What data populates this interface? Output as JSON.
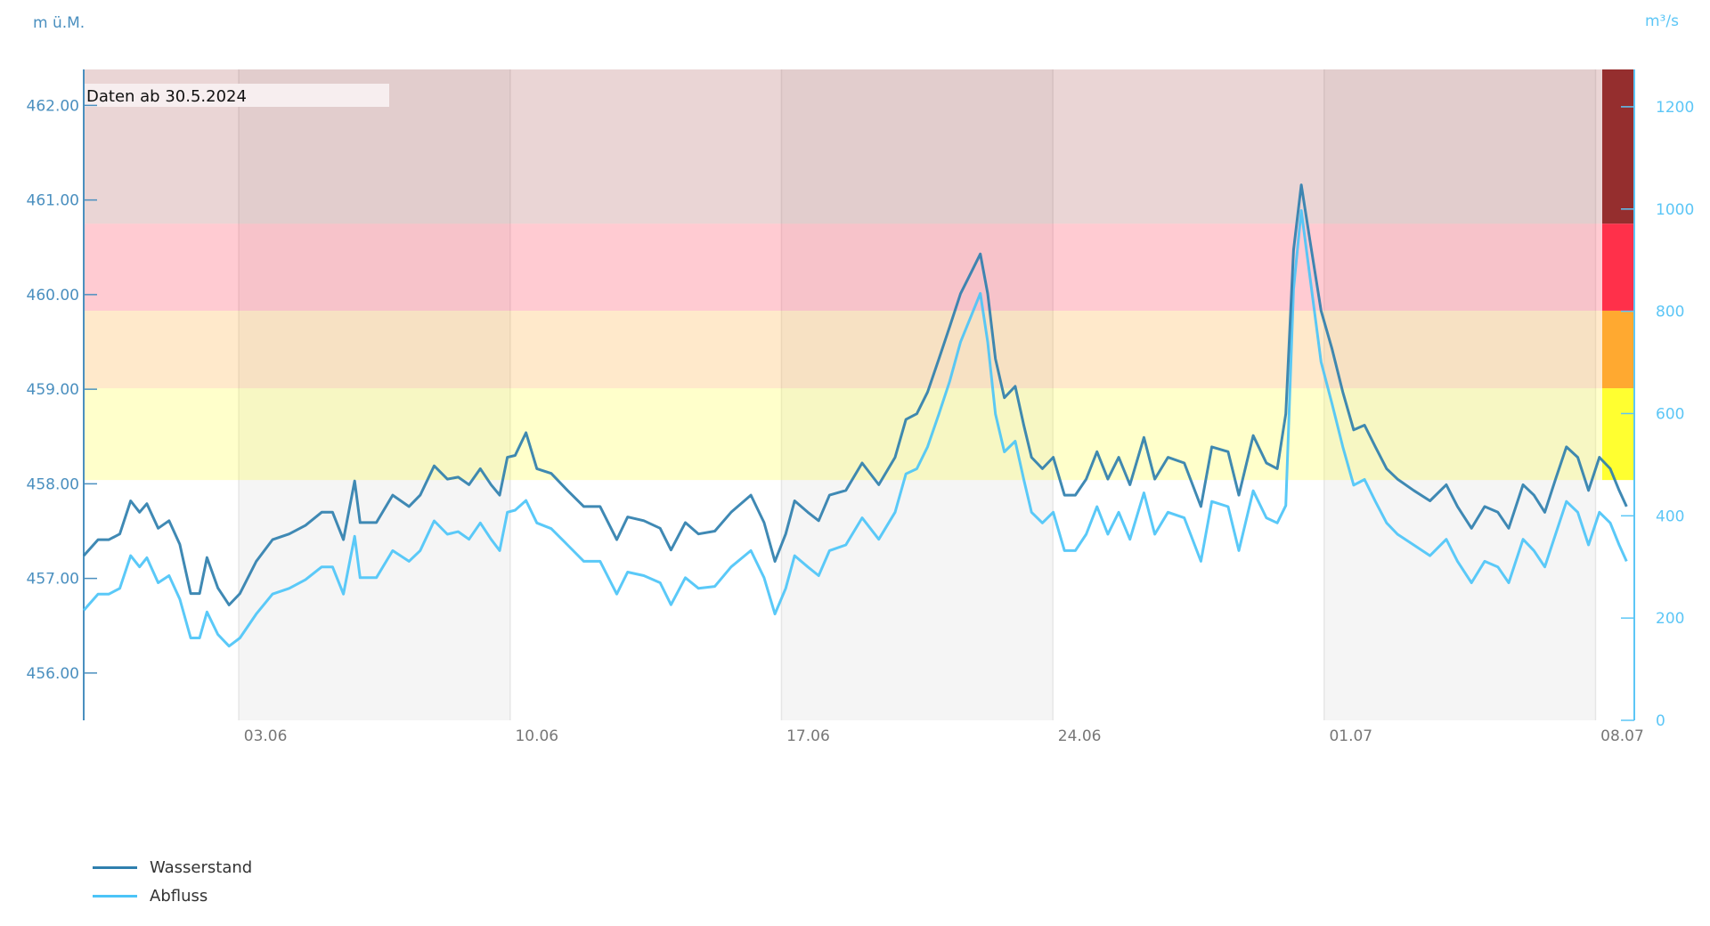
{
  "chart_data": {
    "type": "line",
    "title": "",
    "annotation": "Daten ab 30.5.2024",
    "x_unit": "days since 30.05.2024",
    "xlim": [
      0,
      40
    ],
    "x_ticks": [
      {
        "day": 4,
        "label": "03.06"
      },
      {
        "day": 11,
        "label": "10.06"
      },
      {
        "day": 18,
        "label": "17.06"
      },
      {
        "day": 25,
        "label": "24.06"
      },
      {
        "day": 32,
        "label": "01.07"
      },
      {
        "day": 39,
        "label": "08.07"
      }
    ],
    "y_left": {
      "label": "m ü.M.",
      "range": [
        455.5,
        462.38
      ],
      "ticks": [
        "456.00",
        "457.00",
        "458.00",
        "459.00",
        "460.00",
        "461.00",
        "462.00"
      ],
      "color": "#4a8fbf"
    },
    "y_right": {
      "label": "m³/s",
      "range": [
        0,
        1273
      ],
      "ticks": [
        "0",
        "200",
        "400",
        "600",
        "800",
        "1000",
        "1200"
      ],
      "color": "#5cc6f6"
    },
    "warning_bands_m": [
      {
        "from": 458.04,
        "to": 459.01,
        "color": "#ffff30"
      },
      {
        "from": 459.01,
        "to": 459.83,
        "color": "#ffa930"
      },
      {
        "from": 459.83,
        "to": 460.75,
        "color": "#ff304a"
      },
      {
        "from": 460.75,
        "to": 462.38,
        "color": "#952e2e"
      }
    ],
    "legend": {
      "placement": "bottom-left"
    },
    "series": [
      {
        "name": "Wasserstand",
        "axis": "left",
        "color": "#2f7fae",
        "points": [
          [
            0,
            457.24
          ],
          [
            0.37,
            457.41
          ],
          [
            0.65,
            457.41
          ],
          [
            0.93,
            457.47
          ],
          [
            1.21,
            457.82
          ],
          [
            1.44,
            457.7
          ],
          [
            1.63,
            457.79
          ],
          [
            1.92,
            457.53
          ],
          [
            2.2,
            457.61
          ],
          [
            2.48,
            457.36
          ],
          [
            2.76,
            456.84
          ],
          [
            2.99,
            456.84
          ],
          [
            3.18,
            457.22
          ],
          [
            3.46,
            456.9
          ],
          [
            3.75,
            456.72
          ],
          [
            4.03,
            456.84
          ],
          [
            4.45,
            457.18
          ],
          [
            4.87,
            457.41
          ],
          [
            5.3,
            457.47
          ],
          [
            5.72,
            457.56
          ],
          [
            6.14,
            457.7
          ],
          [
            6.42,
            457.7
          ],
          [
            6.7,
            457.41
          ],
          [
            6.99,
            458.03
          ],
          [
            7.13,
            457.59
          ],
          [
            7.55,
            457.59
          ],
          [
            7.97,
            457.88
          ],
          [
            8.39,
            457.76
          ],
          [
            8.68,
            457.88
          ],
          [
            9.04,
            458.19
          ],
          [
            9.38,
            458.05
          ],
          [
            9.66,
            458.07
          ],
          [
            9.94,
            457.99
          ],
          [
            10.23,
            458.16
          ],
          [
            10.51,
            457.99
          ],
          [
            10.73,
            457.88
          ],
          [
            10.93,
            458.28
          ],
          [
            11.13,
            458.3
          ],
          [
            11.41,
            458.54
          ],
          [
            11.69,
            458.16
          ],
          [
            12.06,
            458.11
          ],
          [
            12.48,
            457.93
          ],
          [
            12.9,
            457.76
          ],
          [
            13.32,
            457.76
          ],
          [
            13.75,
            457.41
          ],
          [
            14.03,
            457.65
          ],
          [
            14.45,
            457.61
          ],
          [
            14.87,
            457.53
          ],
          [
            15.15,
            457.3
          ],
          [
            15.52,
            457.59
          ],
          [
            15.86,
            457.47
          ],
          [
            16.28,
            457.5
          ],
          [
            16.7,
            457.7
          ],
          [
            17.21,
            457.88
          ],
          [
            17.55,
            457.59
          ],
          [
            17.83,
            457.18
          ],
          [
            18.11,
            457.47
          ],
          [
            18.34,
            457.82
          ],
          [
            18.68,
            457.7
          ],
          [
            18.96,
            457.61
          ],
          [
            19.24,
            457.88
          ],
          [
            19.66,
            457.93
          ],
          [
            20.08,
            458.22
          ],
          [
            20.51,
            457.99
          ],
          [
            20.93,
            458.28
          ],
          [
            21.21,
            458.68
          ],
          [
            21.49,
            458.74
          ],
          [
            21.77,
            458.97
          ],
          [
            22.06,
            459.32
          ],
          [
            22.34,
            459.66
          ],
          [
            22.62,
            460.01
          ],
          [
            22.9,
            460.24
          ],
          [
            23.13,
            460.43
          ],
          [
            23.32,
            460.01
          ],
          [
            23.52,
            459.32
          ],
          [
            23.75,
            458.91
          ],
          [
            24.03,
            459.03
          ],
          [
            24.25,
            458.62
          ],
          [
            24.45,
            458.28
          ],
          [
            24.73,
            458.16
          ],
          [
            25.01,
            458.28
          ],
          [
            25.3,
            457.88
          ],
          [
            25.58,
            457.88
          ],
          [
            25.86,
            458.05
          ],
          [
            26.14,
            458.34
          ],
          [
            26.42,
            458.05
          ],
          [
            26.7,
            458.28
          ],
          [
            26.99,
            457.99
          ],
          [
            27.35,
            458.49
          ],
          [
            27.63,
            458.05
          ],
          [
            27.97,
            458.28
          ],
          [
            28.39,
            458.22
          ],
          [
            28.82,
            457.76
          ],
          [
            29.1,
            458.39
          ],
          [
            29.52,
            458.34
          ],
          [
            29.8,
            457.88
          ],
          [
            30.17,
            458.51
          ],
          [
            30.51,
            458.22
          ],
          [
            30.79,
            458.16
          ],
          [
            31.01,
            458.74
          ],
          [
            31.21,
            460.47
          ],
          [
            31.41,
            461.16
          ],
          [
            31.63,
            460.58
          ],
          [
            31.92,
            459.83
          ],
          [
            32.2,
            459.43
          ],
          [
            32.48,
            458.97
          ],
          [
            32.76,
            458.57
          ],
          [
            33.04,
            458.62
          ],
          [
            33.32,
            458.39
          ],
          [
            33.61,
            458.16
          ],
          [
            33.89,
            458.05
          ],
          [
            34.31,
            457.93
          ],
          [
            34.73,
            457.82
          ],
          [
            35.15,
            457.99
          ],
          [
            35.44,
            457.76
          ],
          [
            35.8,
            457.53
          ],
          [
            36.14,
            457.76
          ],
          [
            36.48,
            457.7
          ],
          [
            36.76,
            457.53
          ],
          [
            37.13,
            457.99
          ],
          [
            37.41,
            457.88
          ],
          [
            37.69,
            457.7
          ],
          [
            37.97,
            458.05
          ],
          [
            38.25,
            458.39
          ],
          [
            38.54,
            458.28
          ],
          [
            38.82,
            457.93
          ],
          [
            39.1,
            458.28
          ],
          [
            39.38,
            458.16
          ],
          [
            39.61,
            457.93
          ],
          [
            39.8,
            457.76
          ]
        ]
      },
      {
        "name": "Abfluss",
        "axis": "right",
        "color": "#4cc4f7",
        "points": [
          [
            0,
            215
          ],
          [
            0.37,
            247
          ],
          [
            0.65,
            247
          ],
          [
            0.93,
            258
          ],
          [
            1.21,
            322
          ],
          [
            1.44,
            300
          ],
          [
            1.63,
            318
          ],
          [
            1.92,
            269
          ],
          [
            2.2,
            283
          ],
          [
            2.48,
            237
          ],
          [
            2.76,
            161
          ],
          [
            2.99,
            161
          ],
          [
            3.18,
            212
          ],
          [
            3.46,
            168
          ],
          [
            3.75,
            145
          ],
          [
            4.03,
            161
          ],
          [
            4.45,
            208
          ],
          [
            4.87,
            247
          ],
          [
            5.3,
            258
          ],
          [
            5.72,
            275
          ],
          [
            6.14,
            300
          ],
          [
            6.42,
            300
          ],
          [
            6.7,
            247
          ],
          [
            6.99,
            360
          ],
          [
            7.13,
            279
          ],
          [
            7.55,
            279
          ],
          [
            7.97,
            332
          ],
          [
            8.39,
            311
          ],
          [
            8.68,
            332
          ],
          [
            9.04,
            390
          ],
          [
            9.38,
            364
          ],
          [
            9.66,
            369
          ],
          [
            9.94,
            354
          ],
          [
            10.23,
            386
          ],
          [
            10.51,
            354
          ],
          [
            10.73,
            332
          ],
          [
            10.93,
            407
          ],
          [
            11.13,
            411
          ],
          [
            11.41,
            430
          ],
          [
            11.69,
            386
          ],
          [
            12.06,
            375
          ],
          [
            12.48,
            343
          ],
          [
            12.9,
            311
          ],
          [
            13.32,
            311
          ],
          [
            13.75,
            247
          ],
          [
            14.03,
            290
          ],
          [
            14.45,
            283
          ],
          [
            14.87,
            269
          ],
          [
            15.15,
            226
          ],
          [
            15.52,
            279
          ],
          [
            15.86,
            258
          ],
          [
            16.28,
            262
          ],
          [
            16.7,
            300
          ],
          [
            17.21,
            332
          ],
          [
            17.55,
            279
          ],
          [
            17.83,
            208
          ],
          [
            18.11,
            258
          ],
          [
            18.34,
            322
          ],
          [
            18.68,
            300
          ],
          [
            18.96,
            283
          ],
          [
            19.24,
            332
          ],
          [
            19.66,
            343
          ],
          [
            20.08,
            396
          ],
          [
            20.51,
            354
          ],
          [
            20.93,
            407
          ],
          [
            21.21,
            482
          ],
          [
            21.49,
            492
          ],
          [
            21.77,
            535
          ],
          [
            22.06,
            599
          ],
          [
            22.34,
            663
          ],
          [
            22.62,
            740
          ],
          [
            22.9,
            792
          ],
          [
            23.13,
            835
          ],
          [
            23.32,
            740
          ],
          [
            23.52,
            599
          ],
          [
            23.75,
            525
          ],
          [
            24.03,
            546
          ],
          [
            24.25,
            471
          ],
          [
            24.45,
            407
          ],
          [
            24.73,
            386
          ],
          [
            25.01,
            407
          ],
          [
            25.3,
            332
          ],
          [
            25.58,
            332
          ],
          [
            25.86,
            364
          ],
          [
            26.14,
            418
          ],
          [
            26.42,
            364
          ],
          [
            26.7,
            407
          ],
          [
            26.99,
            354
          ],
          [
            27.35,
            445
          ],
          [
            27.63,
            364
          ],
          [
            27.97,
            407
          ],
          [
            28.39,
            396
          ],
          [
            28.82,
            311
          ],
          [
            29.1,
            428
          ],
          [
            29.52,
            418
          ],
          [
            29.8,
            332
          ],
          [
            30.17,
            449
          ],
          [
            30.51,
            396
          ],
          [
            30.79,
            386
          ],
          [
            31.01,
            420
          ],
          [
            31.21,
            843
          ],
          [
            31.41,
            997
          ],
          [
            31.63,
            869
          ],
          [
            31.92,
            701
          ],
          [
            32.2,
            620
          ],
          [
            32.48,
            535
          ],
          [
            32.76,
            460
          ],
          [
            33.04,
            471
          ],
          [
            33.32,
            428
          ],
          [
            33.61,
            386
          ],
          [
            33.89,
            364
          ],
          [
            34.31,
            343
          ],
          [
            34.73,
            322
          ],
          [
            35.15,
            354
          ],
          [
            35.44,
            311
          ],
          [
            35.8,
            269
          ],
          [
            36.14,
            311
          ],
          [
            36.48,
            300
          ],
          [
            36.76,
            269
          ],
          [
            37.13,
            354
          ],
          [
            37.41,
            332
          ],
          [
            37.69,
            300
          ],
          [
            37.97,
            364
          ],
          [
            38.25,
            428
          ],
          [
            38.54,
            407
          ],
          [
            38.82,
            343
          ],
          [
            39.1,
            407
          ],
          [
            39.38,
            386
          ],
          [
            39.61,
            343
          ],
          [
            39.8,
            311
          ]
        ]
      }
    ]
  }
}
